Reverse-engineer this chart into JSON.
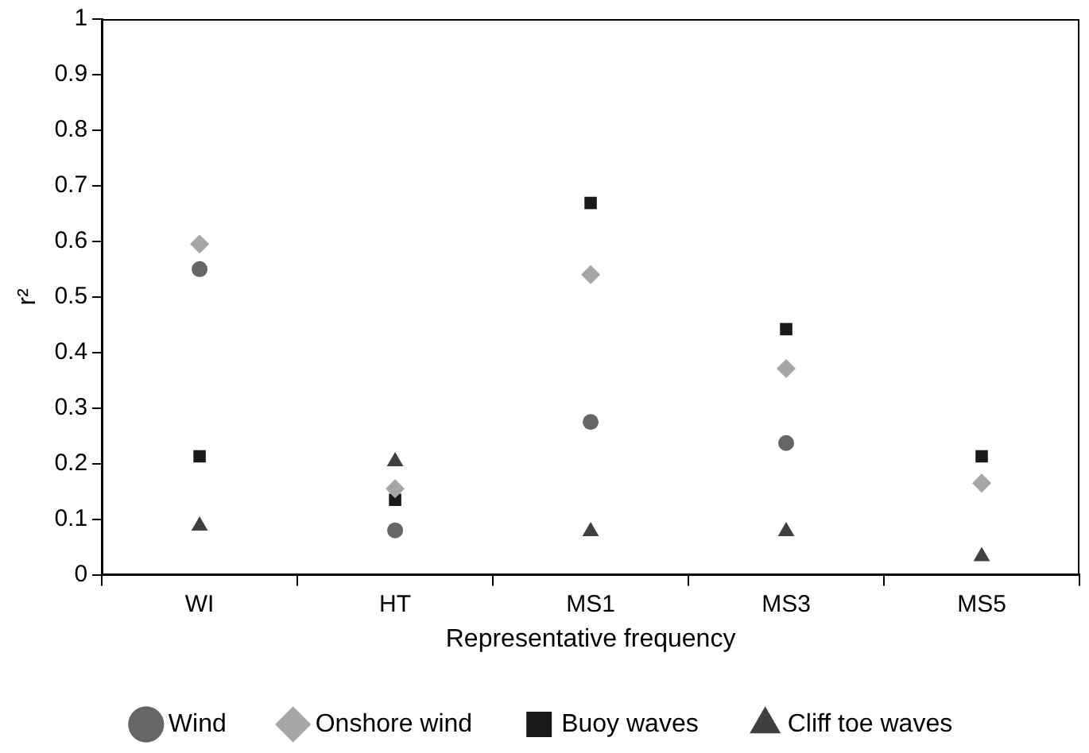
{
  "chart_data": {
    "type": "scatter",
    "xlabel": "Representative frequency",
    "ylabel": "r²",
    "categories": [
      "WI",
      "HT",
      "MS1",
      "MS3",
      "MS5"
    ],
    "series": [
      {
        "name": "Wind",
        "color": "#666666",
        "marker": "circle",
        "values": [
          0.55,
          0.08,
          0.275,
          0.237,
          null
        ]
      },
      {
        "name": "Onshore wind",
        "color": "#a6a6a6",
        "marker": "diamond",
        "values": [
          0.595,
          0.155,
          0.54,
          0.371,
          0.165
        ]
      },
      {
        "name": "Buoy waves",
        "color": "#1a1a1a",
        "marker": "square",
        "values": [
          0.213,
          0.135,
          0.669,
          0.442,
          0.213
        ]
      },
      {
        "name": "Cliff toe waves",
        "color": "#404040",
        "marker": "triangle",
        "values": [
          0.088,
          0.204,
          0.078,
          0.078,
          0.033
        ]
      }
    ],
    "ylim": [
      0,
      1
    ],
    "yticks": [
      0,
      0.1,
      0.2,
      0.3,
      0.4,
      0.5,
      0.6,
      0.7,
      0.8,
      0.9,
      1
    ],
    "grid": false,
    "legend": "bottom"
  }
}
